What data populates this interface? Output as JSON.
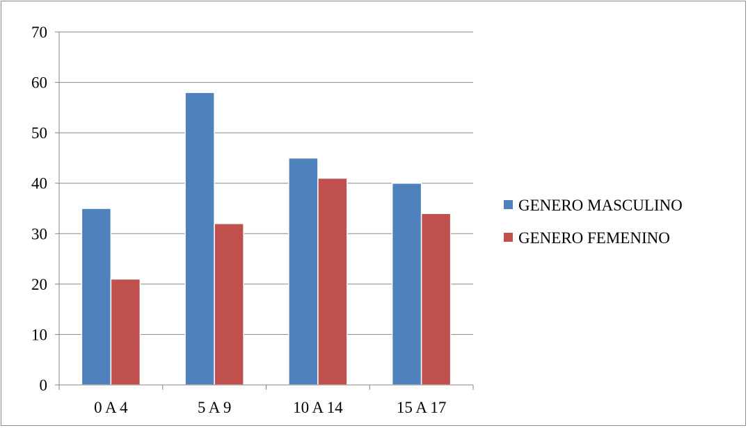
{
  "chart_data": {
    "type": "bar",
    "title": "",
    "xlabel": "",
    "ylabel": "",
    "categories": [
      "0 A 4",
      "5 A 9",
      "10 A 14",
      "15 A 17"
    ],
    "series": [
      {
        "name": "GENERO MASCULINO",
        "values": [
          35,
          58,
          45,
          40
        ],
        "color": "#4F81BD"
      },
      {
        "name": "GENERO FEMENINO",
        "values": [
          21,
          32,
          41,
          34
        ],
        "color": "#C0504D"
      }
    ],
    "ylim": [
      0,
      70
    ],
    "yticks": [
      0,
      10,
      20,
      30,
      40,
      50,
      60,
      70
    ],
    "grid": true,
    "legend_position": "right"
  }
}
